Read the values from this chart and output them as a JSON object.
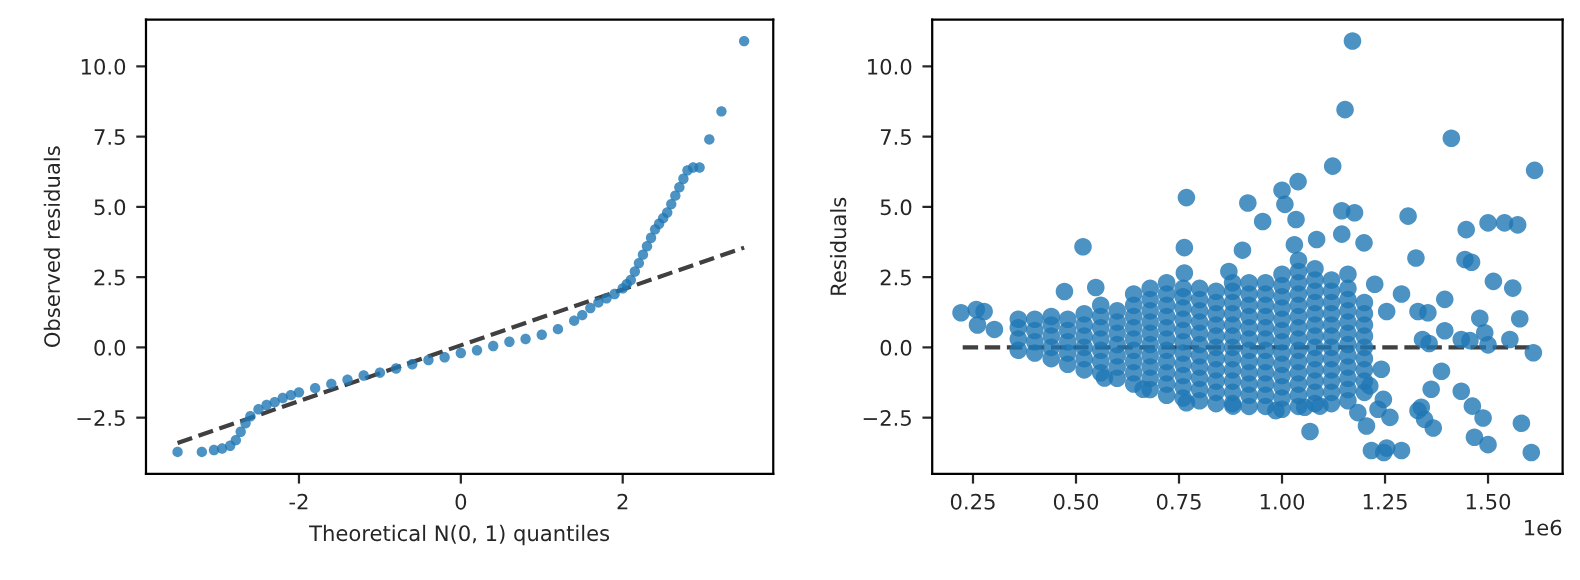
{
  "chart_data": [
    {
      "type": "scatter",
      "xlabel": "Theoretical N(0, 1) quantiles",
      "ylabel": "Observed residuals",
      "xlim": [
        -3.89,
        3.86
      ],
      "xticks": [
        -2,
        0,
        2
      ],
      "ylim": [
        -4.5,
        11.66
      ],
      "yticks": [
        {
          "value": -2.5,
          "label": "−2.5"
        },
        {
          "value": 0,
          "label": "0.0"
        },
        {
          "value": 2.5,
          "label": "2.5"
        },
        {
          "value": 5,
          "label": "5.0"
        },
        {
          "value": 7.5,
          "label": "7.5"
        },
        {
          "value": 10,
          "label": "10.0"
        }
      ],
      "series": [
        {
          "color": "#1f77b4",
          "x": [
            -3.5,
            -3.2,
            -3.05,
            -2.95,
            -2.85,
            -2.78,
            -2.72,
            -2.66,
            -2.6,
            -2.5,
            -2.4,
            -2.3,
            -2.2,
            -2.1,
            -2.0,
            -1.8,
            -1.6,
            -1.4,
            -1.2,
            -1.0,
            -0.8,
            -0.6,
            -0.4,
            -0.2,
            0.0,
            0.2,
            0.4,
            0.6,
            0.8,
            1.0,
            1.2,
            1.4,
            1.5,
            1.6,
            1.7,
            1.8,
            1.9,
            2.0,
            2.05,
            2.1,
            2.15,
            2.2,
            2.25,
            2.3,
            2.35,
            2.4,
            2.45,
            2.5,
            2.55,
            2.6,
            2.65,
            2.7,
            2.75,
            2.8,
            2.87,
            2.95,
            3.07,
            3.22,
            3.5
          ],
          "values": [
            -3.72,
            -3.72,
            -3.65,
            -3.6,
            -3.5,
            -3.3,
            -3.0,
            -2.7,
            -2.45,
            -2.2,
            -2.05,
            -1.95,
            -1.8,
            -1.7,
            -1.6,
            -1.45,
            -1.3,
            -1.15,
            -1.0,
            -0.9,
            -0.75,
            -0.6,
            -0.45,
            -0.35,
            -0.2,
            -0.1,
            0.05,
            0.2,
            0.3,
            0.45,
            0.65,
            0.95,
            1.15,
            1.4,
            1.6,
            1.75,
            1.9,
            2.1,
            2.25,
            2.4,
            2.7,
            3.0,
            3.3,
            3.6,
            3.9,
            4.2,
            4.4,
            4.6,
            4.8,
            5.1,
            5.4,
            5.7,
            6.0,
            6.3,
            6.4,
            6.4,
            7.4,
            8.4,
            10.9
          ]
        },
        {
          "type": "line",
          "color": "#404040",
          "line_style": "dashed",
          "x": [
            -3.5,
            3.5
          ],
          "values": [
            -3.4,
            3.55
          ]
        }
      ]
    },
    {
      "type": "scatter",
      "ylabel": "Residuals",
      "annotations": [
        "1e6"
      ],
      "xlim": [
        0.151,
        1.681
      ],
      "xticks": [
        0.25,
        {
          "value": 0.5,
          "label": "0.50"
        },
        0.75,
        {
          "value": 1.0,
          "label": "1.00"
        },
        1.25,
        {
          "value": 1.5,
          "label": "1.50"
        }
      ],
      "ylim": [
        -4.5,
        11.66
      ],
      "yticks": [
        {
          "value": -2.5,
          "label": "−2.5"
        },
        {
          "value": 0,
          "label": "0.0"
        },
        {
          "value": 2.5,
          "label": "2.5"
        },
        {
          "value": 5,
          "label": "5.0"
        },
        {
          "value": 7.5,
          "label": "7.5"
        },
        {
          "value": 10,
          "label": "10.0"
        }
      ],
      "series": [
        {
          "color": "#1f77b4",
          "x": [
            0.36,
            0.36,
            0.36,
            0.36,
            0.4,
            0.4,
            0.4,
            0.4,
            0.44,
            0.44,
            0.44,
            0.44,
            0.44,
            0.48,
            0.48,
            0.48,
            0.48,
            0.48,
            0.52,
            0.52,
            0.52,
            0.52,
            0.52,
            0.52,
            0.56,
            0.56,
            0.56,
            0.56,
            0.56,
            0.56,
            0.56,
            0.6,
            0.6,
            0.6,
            0.6,
            0.6,
            0.6,
            0.6,
            0.64,
            0.64,
            0.64,
            0.64,
            0.64,
            0.64,
            0.64,
            0.64,
            0.64,
            0.68,
            0.68,
            0.68,
            0.68,
            0.68,
            0.68,
            0.68,
            0.68,
            0.68,
            0.68,
            0.72,
            0.72,
            0.72,
            0.72,
            0.72,
            0.72,
            0.72,
            0.72,
            0.72,
            0.72,
            0.72,
            0.76,
            0.76,
            0.76,
            0.76,
            0.76,
            0.76,
            0.76,
            0.76,
            0.76,
            0.76,
            0.76,
            0.8,
            0.8,
            0.8,
            0.8,
            0.8,
            0.8,
            0.8,
            0.8,
            0.8,
            0.8,
            0.8,
            0.84,
            0.84,
            0.84,
            0.84,
            0.84,
            0.84,
            0.84,
            0.84,
            0.84,
            0.84,
            0.84,
            0.88,
            0.88,
            0.88,
            0.88,
            0.88,
            0.88,
            0.88,
            0.88,
            0.88,
            0.88,
            0.88,
            0.88,
            0.92,
            0.92,
            0.92,
            0.92,
            0.92,
            0.92,
            0.92,
            0.92,
            0.92,
            0.92,
            0.92,
            0.92,
            0.96,
            0.96,
            0.96,
            0.96,
            0.96,
            0.96,
            0.96,
            0.96,
            0.96,
            0.96,
            0.96,
            0.96,
            1.0,
            1.0,
            1.0,
            1.0,
            1.0,
            1.0,
            1.0,
            1.0,
            1.0,
            1.0,
            1.0,
            1.0,
            1.0,
            1.04,
            1.04,
            1.04,
            1.04,
            1.04,
            1.04,
            1.04,
            1.04,
            1.04,
            1.04,
            1.04,
            1.04,
            1.04,
            1.04,
            1.08,
            1.08,
            1.08,
            1.08,
            1.08,
            1.08,
            1.08,
            1.08,
            1.08,
            1.08,
            1.08,
            1.08,
            1.08,
            1.12,
            1.12,
            1.12,
            1.12,
            1.12,
            1.12,
            1.12,
            1.12,
            1.12,
            1.12,
            1.12,
            1.12,
            1.16,
            1.16,
            1.16,
            1.16,
            1.16,
            1.16,
            1.16,
            1.16,
            1.16,
            1.16,
            1.16,
            1.16,
            1.2,
            1.2,
            1.2,
            1.2,
            1.2,
            1.2,
            1.2,
            1.2,
            1.2,
            0.221,
            0.258,
            0.277,
            0.261,
            0.302,
            0.517,
            0.472,
            0.548,
            0.768,
            0.763,
            0.763,
            0.917,
            0.953,
            0.904,
            0.871,
            1.0,
            1.039,
            1.007,
            1.034,
            1.123,
            1.171,
            1.153,
            1.145,
            1.176,
            1.145,
            1.199,
            1.084,
            1.03,
            1.068,
            1.217,
            1.254,
            1.247,
            1.29,
            1.306,
            1.325,
            1.29,
            1.254,
            1.225,
            1.411,
            1.613,
            1.447,
            1.5,
            1.54,
            1.572,
            1.444,
            1.46,
            1.395,
            1.395,
            1.387,
            1.362,
            1.367,
            1.338,
            1.33,
            1.346,
            1.435,
            1.462,
            1.488,
            1.467,
            1.5,
            1.581,
            1.605,
            1.61,
            1.577,
            1.56,
            1.513,
            1.48,
            1.492,
            1.5,
            1.435,
            1.456,
            1.553,
            1.341,
            1.357,
            1.33,
            1.354,
            1.241,
            1.246,
            1.233,
            1.262,
            1.205,
            1.184,
            1.213,
            1.055,
            1.092,
            0.985,
            0.881,
            0.768,
            0.663,
            0.569
          ],
          "values": [
            -0.1,
            0.3,
            0.7,
            1.0,
            -0.2,
            0.2,
            0.6,
            1.0,
            -0.4,
            0,
            0.4,
            0.8,
            1.1,
            -0.6,
            -0.2,
            0.2,
            0.6,
            1.0,
            -0.8,
            -0.4,
            0,
            0.4,
            0.8,
            1.2,
            -0.9,
            -0.5,
            -0.1,
            0.3,
            0.7,
            1.1,
            1.5,
            -1.1,
            -0.7,
            -0.3,
            0.1,
            0.5,
            0.9,
            1.3,
            -1.3,
            -0.9,
            -0.5,
            -0.1,
            0.3,
            0.7,
            1.1,
            1.5,
            1.9,
            -1.5,
            -1.1,
            -0.7,
            -0.3,
            0.1,
            0.5,
            0.9,
            1.3,
            1.7,
            2.1,
            -1.7,
            -1.3,
            -0.9,
            -0.5,
            -0.1,
            0.3,
            0.7,
            1.1,
            1.5,
            1.9,
            2.3,
            -1.8,
            -1.4,
            -1.0,
            -0.6,
            -0.2,
            0.2,
            0.6,
            1.0,
            1.4,
            1.8,
            2.1,
            -1.9,
            -1.5,
            -1.1,
            -0.7,
            -0.3,
            0.1,
            0.5,
            0.9,
            1.3,
            1.7,
            2.1,
            -2.0,
            -1.6,
            -1.2,
            -0.8,
            -0.4,
            0,
            0.4,
            0.8,
            1.2,
            1.6,
            2.0,
            -2.0,
            -1.6,
            -1.2,
            -0.8,
            -0.4,
            0,
            0.4,
            0.8,
            1.2,
            1.6,
            2.0,
            2.3,
            -2.1,
            -1.7,
            -1.3,
            -0.9,
            -0.5,
            -0.1,
            0.3,
            0.7,
            1.1,
            1.5,
            1.9,
            2.3,
            -2.1,
            -1.7,
            -1.3,
            -0.9,
            -0.5,
            -0.1,
            0.3,
            0.7,
            1.1,
            1.5,
            1.9,
            2.3,
            -2.2,
            -1.8,
            -1.4,
            -1.0,
            -0.6,
            -0.2,
            0.2,
            0.6,
            1.0,
            1.4,
            1.8,
            2.2,
            2.6,
            -2.1,
            -1.7,
            -1.3,
            -0.9,
            -0.5,
            -0.1,
            0.3,
            0.7,
            1.1,
            1.5,
            1.9,
            2.3,
            2.7,
            3.1,
            -2.0,
            -1.6,
            -1.2,
            -0.8,
            -0.4,
            0,
            0.4,
            0.8,
            1.2,
            1.6,
            2.0,
            2.4,
            2.8,
            -2.0,
            -1.6,
            -1.2,
            -0.8,
            -0.4,
            0,
            0.4,
            0.8,
            1.2,
            1.6,
            2.0,
            2.4,
            -1.9,
            -1.5,
            -1.1,
            -0.7,
            -0.3,
            0.1,
            0.5,
            0.9,
            1.3,
            1.7,
            2.1,
            2.6,
            -1.6,
            -1.2,
            -0.8,
            -0.4,
            0,
            0.4,
            0.8,
            1.2,
            1.6,
            1.23,
            1.35,
            1.28,
            0.8,
            0.64,
            3.58,
            1.99,
            2.13,
            5.33,
            3.55,
            2.65,
            5.14,
            4.48,
            3.46,
            2.7,
            5.59,
            5.9,
            5.09,
            4.55,
            6.45,
            10.9,
            8.46,
            4.86,
            4.79,
            4.03,
            3.72,
            3.84,
            3.65,
            -2.99,
            -3.67,
            -3.58,
            -3.74,
            -3.67,
            4.67,
            3.18,
            1.9,
            1.28,
            2.25,
            7.44,
            6.3,
            4.19,
            4.43,
            4.43,
            4.36,
            3.13,
            3.03,
            1.71,
            0.59,
            -0.85,
            -1.49,
            -2.87,
            -2.13,
            -2.25,
            -2.56,
            -1.56,
            -2.09,
            -2.51,
            -3.2,
            -3.46,
            -2.7,
            -3.74,
            -0.19,
            1.02,
            2.11,
            2.35,
            1.04,
            0.52,
            0.09,
            0.28,
            0.24,
            0.28,
            0.28,
            0.14,
            1.28,
            1.23,
            -0.78,
            -1.85,
            -2.2,
            -2.49,
            -2.8,
            -2.32,
            -1.37,
            -2.13,
            -2.09,
            -2.25,
            -2.09,
            -1.97,
            -1.49,
            -1.09
          ]
        },
        {
          "type": "line",
          "color": "#404040",
          "line_style": "dashed",
          "x": [
            0.225,
            1.6
          ],
          "values": [
            0,
            0
          ]
        }
      ]
    }
  ]
}
